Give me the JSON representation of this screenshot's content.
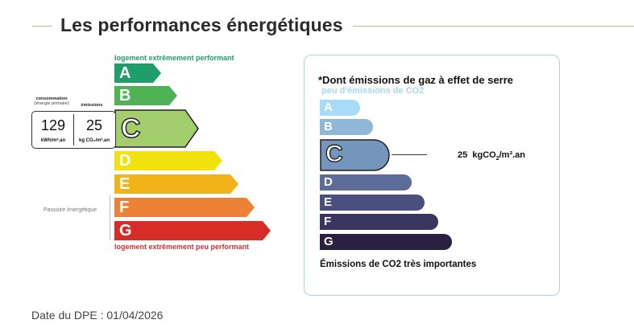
{
  "page": {
    "title": "Les performances énergétiques"
  },
  "dpe": {
    "top_note": "logement extrêmement performant",
    "bottom_note": "logement extrêmement peu performant",
    "passoire_label": "Passoire énergétique",
    "classes": [
      {
        "letter": "A",
        "color": "#1f9d6b"
      },
      {
        "letter": "B",
        "color": "#4db355"
      },
      {
        "letter": "C",
        "color": "#a4cd6e"
      },
      {
        "letter": "D",
        "color": "#f1e10d"
      },
      {
        "letter": "E",
        "color": "#f1b317"
      },
      {
        "letter": "F",
        "color": "#ec8235"
      },
      {
        "letter": "G",
        "color": "#d72d27"
      }
    ],
    "selected": "C",
    "consumption": {
      "header_line1": "consommation",
      "header_line2": "(énergie primaire)",
      "value": "129",
      "unit": "kWh/m².an"
    },
    "emissions": {
      "header": "émissions",
      "value": "25",
      "unit": "kg CO₂/m².an"
    }
  },
  "ges": {
    "title": "*Dont émissions de gaz à effet de serre",
    "subtitle": "peu d'émissions de CO2",
    "classes": [
      {
        "letter": "A",
        "color": "#a7dbf6"
      },
      {
        "letter": "B",
        "color": "#8fb7d8"
      },
      {
        "letter": "C",
        "color": "#7496bc"
      },
      {
        "letter": "D",
        "color": "#5b6c99"
      },
      {
        "letter": "E",
        "color": "#4a4f7e"
      },
      {
        "letter": "F",
        "color": "#3b3660"
      },
      {
        "letter": "G",
        "color": "#2a2042"
      }
    ],
    "selected": "C",
    "value": "25",
    "unit_prefix": "kgCO",
    "unit_sub": "2",
    "unit_suffix": "/m².an",
    "footer": "Émissions de CO2 très importantes"
  },
  "date": {
    "text": "Date du DPE : 01/04/2026"
  }
}
